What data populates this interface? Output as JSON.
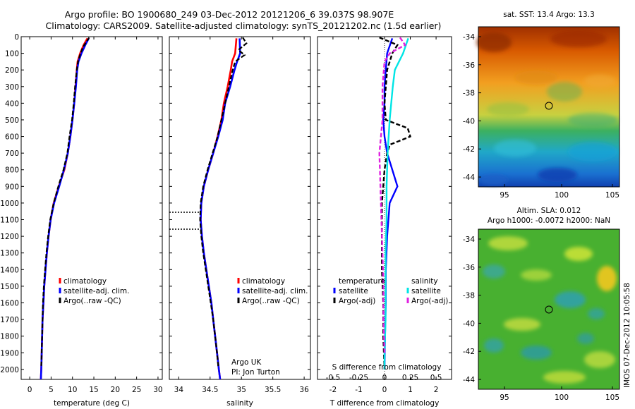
{
  "title_line1": "Argo profile: BO 1900680_249 03-Dec-2012 20121206_6 39.037S 98.907E",
  "title_line2": "Climatology: CARS2009. Satellite-adjusted climatology: synTS_20121202.nc (1.5d earlier)",
  "colors": {
    "climatology": "#ff0000",
    "satellite": "#0000ff",
    "argo": "#000000",
    "sat_s": "#00e5e5",
    "argo_s": "#e020e0"
  },
  "panels": {
    "temperature": {
      "xlabel": "temperature (deg C)",
      "xticks": [
        "0",
        "5",
        "10",
        "15",
        "20",
        "25",
        "30"
      ],
      "legend": [
        "climatology",
        "satellite-adj. clim.",
        "Argo(..raw -QC)"
      ]
    },
    "salinity": {
      "xlabel": "salinity",
      "xticks": [
        "34",
        "34.5",
        "35",
        "35.5",
        "36"
      ],
      "legend": [
        "climatology",
        "satellite-adj. clim.",
        "Argo(..raw -QC)"
      ],
      "note1": "Argo UK",
      "note2": "PI: Jon Turton"
    },
    "difference": {
      "xlabel": "T difference from climatology",
      "xticks": [
        "-2",
        "-1",
        "0",
        "1",
        "2"
      ],
      "top_label": "S difference from climatology",
      "sticks": [
        "-0.5",
        "-0.25",
        "0",
        "0.25",
        "0.5"
      ],
      "leg_t_title": "temperature",
      "leg_s_title": "salinity",
      "leg_t": [
        "satellite",
        "Argo(-adj)"
      ],
      "leg_s": [
        "satellite",
        "Argo(-adj)"
      ]
    }
  },
  "yticks": [
    "0",
    "100",
    "200",
    "300",
    "400",
    "500",
    "600",
    "700",
    "800",
    "900",
    "1000",
    "1100",
    "1200",
    "1300",
    "1400",
    "1500",
    "1600",
    "1700",
    "1800",
    "1900",
    "2000"
  ],
  "maps": {
    "sst_title": "sat. SST: 13.4  Argo: 13.3",
    "sla_title1": "Altim. SLA: 0.012",
    "sla_title2": "Argo h1000: -0.0072 h2000: NaN",
    "yticks": [
      "-34",
      "-36",
      "-38",
      "-40",
      "-42",
      "-44"
    ],
    "xticks": [
      "95",
      "100",
      "105"
    ]
  },
  "footer": "IMOS 07-Dec-2012 10:05:58",
  "chart_data": [
    {
      "type": "line",
      "title": "",
      "xlabel": "temperature (deg C)",
      "ylabel": "",
      "xlim": [
        -2,
        31
      ],
      "ylim": [
        2060,
        0
      ],
      "grid": false,
      "legend": "bottom-right",
      "series": [
        {
          "name": "climatology",
          "depth": [
            10,
            50,
            100,
            150,
            200,
            300,
            400,
            500,
            600,
            700,
            800,
            900,
            1000,
            1100,
            1200,
            1300,
            1400,
            1500,
            1600,
            1700,
            1800,
            1900,
            2000,
            2060
          ],
          "values": [
            13.5,
            12.6,
            11.8,
            11.2,
            11.0,
            10.7,
            10.4,
            10.0,
            9.5,
            8.9,
            8.1,
            6.8,
            5.6,
            4.9,
            4.4,
            4.0,
            3.7,
            3.4,
            3.2,
            3.0,
            2.9,
            2.8,
            2.7,
            2.6
          ]
        },
        {
          "name": "satellite-adj. clim.",
          "depth": [
            10,
            50,
            100,
            150,
            200,
            300,
            400,
            500,
            600,
            700,
            800,
            900,
            1000,
            1100,
            1200,
            1300,
            1400,
            1500,
            1600,
            1700,
            1800,
            1900,
            2000,
            2060
          ],
          "values": [
            13.8,
            13.0,
            12.1,
            11.4,
            11.1,
            10.8,
            10.4,
            10.0,
            9.5,
            8.9,
            8.0,
            6.9,
            5.7,
            4.9,
            4.4,
            4.0,
            3.7,
            3.4,
            3.2,
            3.0,
            2.9,
            2.8,
            2.7,
            2.6
          ]
        },
        {
          "name": "Argo(..raw -QC)",
          "depth": [
            5,
            30,
            60,
            100,
            150,
            200,
            300,
            400,
            500,
            600,
            700,
            800,
            900,
            1000,
            1100,
            1200,
            1300,
            1400,
            1500,
            1600,
            1700,
            1800,
            1900,
            1980
          ],
          "values": [
            13.9,
            13.3,
            12.5,
            11.9,
            11.3,
            11.0,
            10.6,
            10.3,
            9.9,
            9.3,
            8.8,
            7.9,
            6.7,
            5.6,
            4.8,
            4.3,
            3.9,
            3.6,
            3.3,
            3.1,
            3.0,
            2.9,
            2.8,
            2.7
          ]
        }
      ]
    },
    {
      "type": "line",
      "title": "",
      "xlabel": "salinity",
      "ylabel": "",
      "xlim": [
        33.85,
        36.1
      ],
      "ylim": [
        2060,
        0
      ],
      "grid": false,
      "legend": "bottom-right",
      "series": [
        {
          "name": "climatology",
          "depth": [
            10,
            100,
            150,
            200,
            300,
            400,
            500,
            600,
            700,
            800,
            900,
            1000,
            1100,
            1200,
            1300,
            1400,
            1500,
            1600,
            1700,
            1800,
            1900,
            2000,
            2060
          ],
          "values": [
            34.92,
            34.9,
            34.85,
            34.83,
            34.78,
            34.72,
            34.68,
            34.62,
            34.55,
            34.47,
            34.4,
            34.36,
            34.35,
            34.37,
            34.4,
            34.44,
            34.48,
            34.52,
            34.55,
            34.58,
            34.61,
            34.64,
            34.66
          ]
        },
        {
          "name": "satellite-adj. clim.",
          "depth": [
            10,
            100,
            150,
            200,
            300,
            400,
            500,
            600,
            700,
            800,
            900,
            1000,
            1100,
            1200,
            1300,
            1400,
            1500,
            1600,
            1700,
            1800,
            1900,
            2000,
            2060
          ],
          "values": [
            34.97,
            34.98,
            34.93,
            34.89,
            34.82,
            34.74,
            34.7,
            34.63,
            34.55,
            34.47,
            34.4,
            34.36,
            34.35,
            34.37,
            34.4,
            34.44,
            34.48,
            34.52,
            34.55,
            34.58,
            34.61,
            34.64,
            34.66
          ]
        },
        {
          "name": "Argo(..raw -QC)",
          "depth": [
            5,
            40,
            80,
            110,
            150,
            200,
            300,
            400,
            500,
            600,
            700,
            800,
            900,
            1000,
            1100,
            1200,
            1300,
            1400,
            1500,
            1600,
            1700,
            1800,
            1900,
            1980
          ],
          "values": [
            35.02,
            35.08,
            34.95,
            35.05,
            34.9,
            34.86,
            34.8,
            34.74,
            34.68,
            34.62,
            34.54,
            34.46,
            34.39,
            34.35,
            34.34,
            34.36,
            34.39,
            34.43,
            34.47,
            34.51,
            34.55,
            34.58,
            34.61,
            34.63
          ]
        }
      ]
    },
    {
      "type": "line",
      "title": "",
      "xlabel": "T difference from climatology",
      "ylabel": "",
      "xlim": [
        -2.6,
        2.6
      ],
      "ylim": [
        2060,
        0
      ],
      "grid": false,
      "legend": "bottom",
      "series": [
        {
          "name": "temperature satellite",
          "depth": [
            10,
            100,
            200,
            300,
            400,
            500,
            600,
            700,
            800,
            900,
            1000,
            1200,
            1400,
            1600,
            1800,
            2000
          ],
          "values": [
            0.3,
            0.1,
            0.05,
            0.0,
            0.0,
            -0.05,
            0.0,
            0.1,
            0.3,
            0.5,
            0.2,
            0.1,
            0.05,
            0.05,
            0.02,
            0.0
          ]
        },
        {
          "name": "temperature Argo(-adj)",
          "depth": [
            5,
            50,
            100,
            200,
            300,
            400,
            500,
            550,
            600,
            650,
            700,
            800,
            900,
            1000,
            1200,
            1400,
            1600,
            1800,
            2000
          ],
          "values": [
            -0.2,
            0.5,
            0.3,
            0.1,
            0.05,
            0.0,
            0.05,
            0.9,
            1.0,
            0.2,
            0.1,
            0.0,
            -0.05,
            -0.1,
            -0.1,
            -0.1,
            -0.05,
            -0.05,
            0.0
          ]
        },
        {
          "name": "salinity satellite",
          "depth": [
            10,
            100,
            200,
            300,
            500,
            700,
            900,
            1100,
            1300,
            1500,
            1700,
            1900,
            2000
          ],
          "values": [
            0.23,
            0.18,
            0.1,
            0.08,
            0.05,
            0.03,
            0.02,
            0.02,
            0.01,
            0.01,
            0.01,
            0.0,
            0.0
          ]
        },
        {
          "name": "salinity Argo(-adj)",
          "depth": [
            5,
            50,
            100,
            150,
            300,
            500,
            700,
            900,
            1100,
            1300,
            1500,
            1700,
            1900
          ],
          "values": [
            0.15,
            0.2,
            0.05,
            0.0,
            -0.02,
            -0.02,
            -0.05,
            -0.04,
            -0.03,
            -0.02,
            -0.01,
            -0.01,
            0.0
          ]
        }
      ]
    }
  ]
}
